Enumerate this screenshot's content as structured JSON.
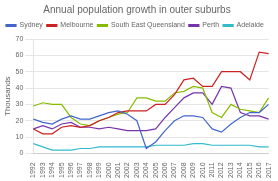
{
  "chart_data": {
    "type": "line",
    "title": "Annual population growth in outer suburbs",
    "ylabel": "Thousands",
    "categories": [
      "1992",
      "1993",
      "1994",
      "1995",
      "1996",
      "1997",
      "1998",
      "1999",
      "2000",
      "2001",
      "2002",
      "2003",
      "2004",
      "2005",
      "2006",
      "2007",
      "2008",
      "2009",
      "2010",
      "2011",
      "2012",
      "2013",
      "2014",
      "2015",
      "2016",
      "2017"
    ],
    "series": [
      {
        "name": "Sydney",
        "color": "#4466cc",
        "values": [
          21,
          19,
          18,
          21,
          23,
          21,
          21,
          23,
          25,
          26,
          24,
          20,
          3,
          7,
          14,
          20,
          23,
          23,
          22,
          15,
          13,
          18,
          22,
          25,
          25,
          30
        ]
      },
      {
        "name": "Melbourne",
        "color": "#cc2222",
        "values": [
          15,
          12,
          12,
          16,
          17,
          16,
          17,
          20,
          22,
          25,
          26,
          26,
          26,
          30,
          30,
          36,
          45,
          46,
          41,
          41,
          50,
          50,
          50,
          45,
          62,
          61
        ]
      },
      {
        "name": "South East Queensland",
        "color": "#88bb00",
        "values": [
          29,
          31,
          30,
          30,
          22,
          18,
          17,
          20,
          22,
          24,
          25,
          34,
          34,
          32,
          32,
          37,
          38,
          41,
          40,
          25,
          22,
          30,
          27,
          26,
          25,
          34
        ]
      },
      {
        "name": "Perth",
        "color": "#7733aa",
        "values": [
          15,
          17,
          15,
          18,
          19,
          16,
          16,
          15,
          16,
          15,
          14,
          14,
          14,
          15,
          22,
          28,
          34,
          37,
          37,
          30,
          41,
          40,
          25,
          23,
          23,
          21
        ]
      },
      {
        "name": "Adelaide",
        "color": "#33bbcc",
        "values": [
          6,
          4,
          2,
          2,
          2,
          3,
          3,
          4,
          4,
          4,
          4,
          4,
          4,
          5,
          5,
          5,
          5,
          6,
          6,
          5,
          5,
          5,
          5,
          5,
          4,
          4
        ]
      }
    ],
    "ylim": [
      0,
      70
    ],
    "yticks": [
      0,
      10,
      20,
      30,
      40,
      50,
      60,
      70
    ],
    "grid": true,
    "legend": "upper left"
  }
}
